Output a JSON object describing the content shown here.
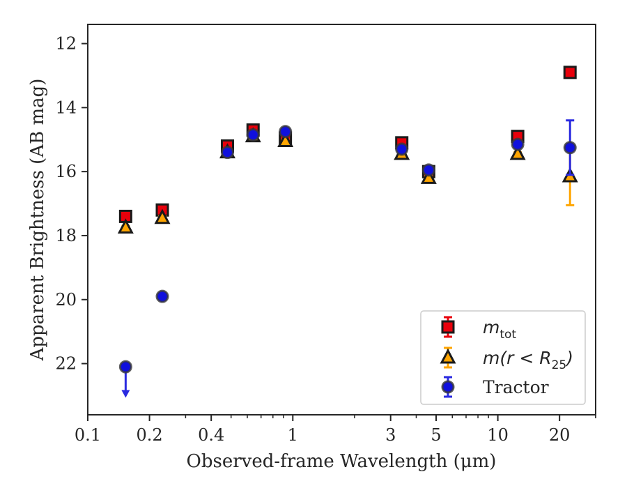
{
  "chart_data": {
    "type": "scatter",
    "xscale": "log",
    "xlim": [
      0.1,
      30
    ],
    "ylim": [
      23.6,
      11.4
    ],
    "y_inverted": true,
    "xlabel": "Observed-frame Wavelength (μm)",
    "ylabel": "Apparent Brightness (AB mag)",
    "xticks": [
      {
        "value": 0.1,
        "label": "0.1"
      },
      {
        "value": 0.2,
        "label": "0.2"
      },
      {
        "value": 0.4,
        "label": "0.4"
      },
      {
        "value": 1,
        "label": "1"
      },
      {
        "value": 3,
        "label": "3"
      },
      {
        "value": 5,
        "label": "5"
      },
      {
        "value": 10,
        "label": "10"
      },
      {
        "value": 20,
        "label": "20"
      }
    ],
    "yticks": [
      {
        "value": 12,
        "label": "12"
      },
      {
        "value": 14,
        "label": "14"
      },
      {
        "value": 16,
        "label": "16"
      },
      {
        "value": 18,
        "label": "18"
      },
      {
        "value": 20,
        "label": "20"
      },
      {
        "value": 22,
        "label": "22"
      }
    ],
    "grid": false,
    "legend_position": "bottom-right",
    "series": [
      {
        "name": "m_tot",
        "legend_main": "m",
        "legend_sub": "tot",
        "marker": "square",
        "color": "#e8000b",
        "errcolor": "#e8000b",
        "points": [
          {
            "x": 0.153,
            "y": 17.4,
            "err": 0.05
          },
          {
            "x": 0.231,
            "y": 17.2,
            "err": 0.05
          },
          {
            "x": 0.48,
            "y": 15.2,
            "err": 0.05
          },
          {
            "x": 0.64,
            "y": 14.7,
            "err": 0.05
          },
          {
            "x": 0.92,
            "y": 14.95,
            "err": 0.05
          },
          {
            "x": 3.4,
            "y": 15.1,
            "err": 0.05
          },
          {
            "x": 4.6,
            "y": 16.0,
            "err": 0.05
          },
          {
            "x": 12.5,
            "y": 14.9,
            "err": 0.05
          },
          {
            "x": 22.5,
            "y": 12.9,
            "err": 0.05
          }
        ]
      },
      {
        "name": "m(r < R25)",
        "legend_main": "m(r < R",
        "legend_sub": "25",
        "legend_tail": ")",
        "marker": "triangle",
        "color": "#ffa500",
        "errcolor": "#ffa500",
        "points": [
          {
            "x": 0.153,
            "y": 17.75,
            "err": 0.05
          },
          {
            "x": 0.231,
            "y": 17.45,
            "err": 0.05
          },
          {
            "x": 0.48,
            "y": 15.4,
            "err": 0.05
          },
          {
            "x": 0.64,
            "y": 14.9,
            "err": 0.05
          },
          {
            "x": 0.92,
            "y": 15.05,
            "err": 0.05
          },
          {
            "x": 3.4,
            "y": 15.45,
            "err": 0.05
          },
          {
            "x": 4.6,
            "y": 16.2,
            "err": 0.05
          },
          {
            "x": 12.5,
            "y": 15.45,
            "err": 0.05
          },
          {
            "x": 22.5,
            "y": 16.15,
            "err": 0.9
          }
        ]
      },
      {
        "name": "Tractor",
        "marker": "circle",
        "color": "#1010dd",
        "errcolor": "#2a2ae0",
        "points": [
          {
            "x": 0.153,
            "y": 22.1,
            "upper_limit": true,
            "limit_to": 23.0
          },
          {
            "x": 0.231,
            "y": 19.9,
            "err": 0.05
          },
          {
            "x": 0.48,
            "y": 15.4,
            "err": 0.05
          },
          {
            "x": 0.64,
            "y": 14.85,
            "err": 0.05
          },
          {
            "x": 0.92,
            "y": 14.75,
            "err": 0.05
          },
          {
            "x": 3.4,
            "y": 15.3,
            "err": 0.05
          },
          {
            "x": 4.6,
            "y": 15.95,
            "err": 0.05
          },
          {
            "x": 12.5,
            "y": 15.15,
            "err": 0.05
          },
          {
            "x": 22.5,
            "y": 15.25,
            "err": 0.85
          }
        ]
      }
    ]
  }
}
